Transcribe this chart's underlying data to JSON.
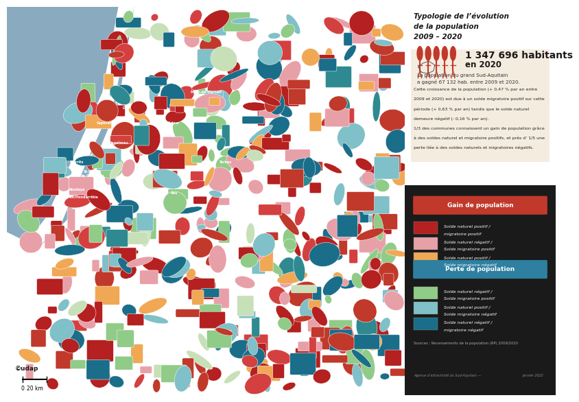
{
  "title_line1": "Typologie de l’évolution",
  "title_line2": "de la population",
  "title_line3": "2009 – 2020",
  "stat_number": "1 347 696 habitants",
  "stat_year": "en 2020",
  "stat_desc1": "La population du grand Sud-Aquitain",
  "stat_desc2": "a gagné 67 132 hab. entre 2009 et 2020.",
  "body_text": "Cette croissance de la population (+ 0,47 % par an entre\n2009 et 2020) est due à un solde migratoire positif sur cette\npériode (+ 0,63 % par an) tandis que le solde naturel\ndemeure négatif (- 0,16 % par an).\n1/3 des communes connaissent un gain de population grâce\nà des soldes naturel et migratoire positifs, et près d’ 1/5 une\nperte liée à des soldes naturels et migratoires négatifs.",
  "gain_label": "Gain de population",
  "gain_color": "#c0392b",
  "perte_label": "Perte de population",
  "perte_color": "#2e7fa0",
  "legend_items_gain": [
    {
      "color": "#b52020",
      "line1": "Solde naturel positif /",
      "line2": "migratoire positif"
    },
    {
      "color": "#e8a0a8",
      "line1": "Solde naturel négatif /",
      "line2": "Solde migratoire positif"
    },
    {
      "color": "#f0a855",
      "line1": "Solde naturel positif /",
      "line2": "Solde migratoire négatif"
    }
  ],
  "legend_items_perte": [
    {
      "color": "#90cc88",
      "line1": "Solde naturel négatif /",
      "line2": "Solde migratoire positif"
    },
    {
      "color": "#80c0c8",
      "line1": "Solde naturel positif /",
      "line2": "Solde migratoire négatif"
    },
    {
      "color": "#1a6e8a",
      "line1": "Solde naturel négatif /",
      "line2": "migratoire négatif"
    }
  ],
  "overall_bg": "#ffffff",
  "panel_right_bg": "#ffffff",
  "legend_bg": "#1a1a1a",
  "info_box_bg": "#f5ece0",
  "ocean_color": "#8aabbf",
  "land_bg": "#ffffff",
  "map_colors": [
    "#b52020",
    "#c0392b",
    "#d44040",
    "#e8a0a8",
    "#f0a855",
    "#90cc88",
    "#80c0c8",
    "#1a6e8a",
    "#2e8a90",
    "#c8e0b8"
  ],
  "source_text": "Sources : Recensements de la population (RP) 2009/2020",
  "footer_left": "Agence d’attractivité du Sud-Aquitain —",
  "footer_right": "janvier 2022",
  "scale_text": "20 km",
  "audap_text": "©udap"
}
